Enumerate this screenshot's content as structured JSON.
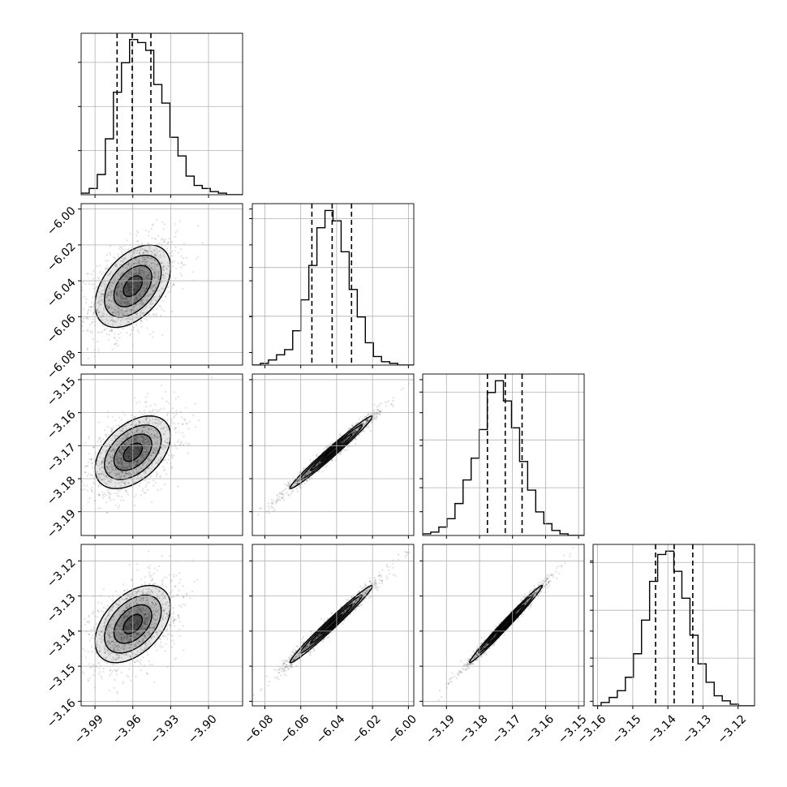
{
  "chart_data": {
    "type": "corner",
    "grid": true,
    "parameters": [
      {
        "range": [
          -4.001,
          -3.873
        ],
        "ticks": [
          -3.99,
          -3.96,
          -3.93,
          -3.9
        ],
        "tick_labels": [
          "−3.99",
          "−3.96",
          "−3.93",
          "−3.90"
        ],
        "quantiles": [
          -3.9725,
          -3.9605,
          -3.9457
        ]
      },
      {
        "range": [
          -6.087,
          -5.997
        ],
        "ticks": [
          -6.08,
          -6.06,
          -6.04,
          -6.02,
          -6.0
        ],
        "tick_labels": [
          "−6.08",
          "−6.06",
          "−6.04",
          "−6.02",
          "−6.00"
        ],
        "quantiles": [
          -6.0538,
          -6.0425,
          -6.0317
        ]
      },
      {
        "range": [
          -3.1972,
          -3.1483
        ],
        "ticks": [
          -3.19,
          -3.18,
          -3.17,
          -3.16,
          -3.15
        ],
        "tick_labels": [
          "−3.19",
          "−3.18",
          "−3.17",
          "−3.16",
          "−3.15"
        ],
        "quantiles": [
          -3.1776,
          -3.1722,
          -3.1671
        ]
      },
      {
        "range": [
          -3.1613,
          -3.1153
        ],
        "ticks": [
          -3.16,
          -3.15,
          -3.14,
          -3.13,
          -3.12
        ],
        "tick_labels": [
          "−3.16",
          "−3.15",
          "−3.14",
          "−3.13",
          "−3.12"
        ],
        "quantiles": [
          -3.1435,
          -3.1382,
          -3.1329
        ]
      }
    ],
    "histograms": [
      {
        "param": 0,
        "counts": [
          1,
          4,
          13,
          36,
          66,
          85,
          100,
          98,
          93,
          71,
          59,
          37,
          25,
          12,
          6,
          4,
          2,
          1,
          0,
          0
        ],
        "ymax": 104
      },
      {
        "param": 1,
        "counts": [
          0,
          1,
          3,
          6,
          9,
          20,
          38,
          58,
          80,
          90,
          84,
          66,
          44,
          28,
          13,
          5,
          2,
          1,
          0,
          0
        ],
        "ymax": 94
      },
      {
        "param": 2,
        "counts": [
          1,
          2,
          5,
          10,
          19,
          33,
          46,
          63,
          85,
          92,
          80,
          64,
          44,
          27,
          14,
          7,
          3,
          1,
          0,
          0
        ],
        "ymax": 96
      },
      {
        "param": 3,
        "counts": [
          0,
          2,
          5,
          9,
          17,
          31,
          51,
          74,
          90,
          92,
          80,
          64,
          42,
          25,
          14,
          6,
          3,
          1,
          0,
          0
        ],
        "ymax": 96
      }
    ],
    "pairs": [
      {
        "x": 0,
        "y": 1,
        "center": [
          -3.96,
          -6.043
        ],
        "sd": [
          0.015,
          0.0115
        ],
        "rho": 0.45
      },
      {
        "x": 0,
        "y": 2,
        "center": [
          -3.96,
          -3.172
        ],
        "sd": [
          0.015,
          0.0055
        ],
        "rho": 0.45
      },
      {
        "x": 1,
        "y": 2,
        "center": [
          -6.043,
          -3.172
        ],
        "sd": [
          0.0115,
          0.0055
        ],
        "rho": 0.985
      },
      {
        "x": 0,
        "y": 3,
        "center": [
          -3.96,
          -3.138
        ],
        "sd": [
          0.015,
          0.0055
        ],
        "rho": 0.45
      },
      {
        "x": 1,
        "y": 3,
        "center": [
          -6.043,
          -3.138
        ],
        "sd": [
          0.0115,
          0.0055
        ],
        "rho": 0.985
      },
      {
        "x": 2,
        "y": 3,
        "center": [
          -3.172,
          -3.138
        ],
        "sd": [
          0.0055,
          0.0055
        ],
        "rho": 0.99
      }
    ],
    "contour_levels_sigma": [
      0.5,
      1.0,
      1.5,
      2.0
    ],
    "colors": {
      "line": "#000000",
      "grid": "#b0b0b0",
      "points": "#000000"
    }
  }
}
